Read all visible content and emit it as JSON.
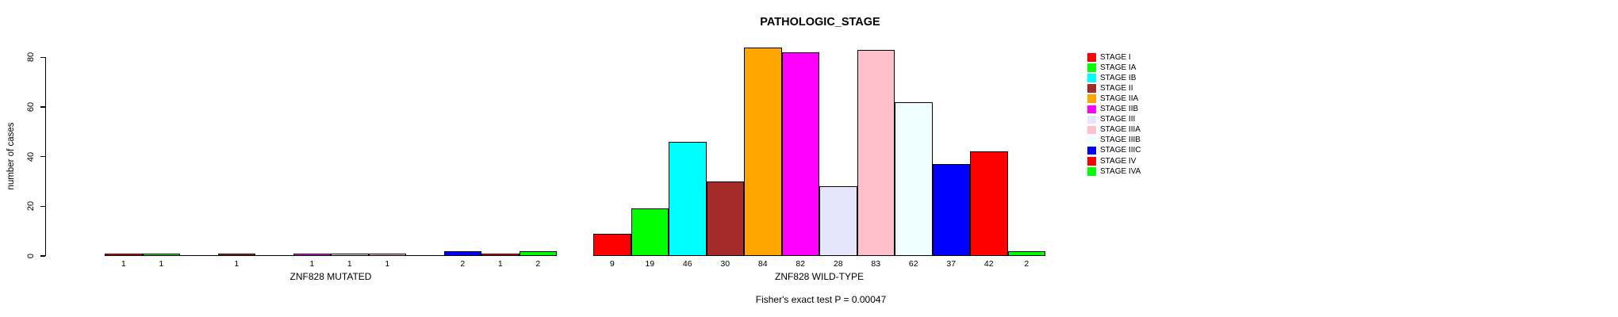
{
  "title": "PATHOLOGIC_STAGE",
  "ylabel": "number of cases",
  "caption": "Fisher's exact test P = 0.00047",
  "panel_titles": {
    "mutated": "ZNF828 MUTATED",
    "wildtype": "ZNF828 WILD-TYPE"
  },
  "chart_data": {
    "type": "bar",
    "title": "PATHOLOGIC_STAGE",
    "ylabel": "number of cases",
    "xlabel_left": "ZNF828 MUTATED",
    "xlabel_right": "ZNF828 WILD-TYPE",
    "ylim": [
      0,
      80
    ],
    "yticks": [
      0,
      20,
      40,
      60,
      80
    ],
    "grid": false,
    "legend_position": "right",
    "annotation": "Fisher's exact test P = 0.00047",
    "bar_labels_show_zero": false,
    "categories": [
      "STAGE I",
      "STAGE IA",
      "STAGE IB",
      "STAGE II",
      "STAGE IIA",
      "STAGE IIB",
      "STAGE III",
      "STAGE IIIA",
      "STAGE IIIB",
      "STAGE IIIC",
      "STAGE IV",
      "STAGE IVA"
    ],
    "colors": [
      "#FF0000",
      "#00FF00",
      "#00FFFF",
      "#A52A2A",
      "#FFA500",
      "#FF00FF",
      "#E6E6FA",
      "#FFC0CB",
      "#F0FFFF",
      "#0000FF",
      "#FF0000",
      "#00FF00"
    ],
    "series": [
      {
        "name": "ZNF828 MUTATED",
        "values": [
          1,
          1,
          0,
          1,
          0,
          1,
          1,
          1,
          0,
          2,
          1,
          2
        ]
      },
      {
        "name": "ZNF828 WILD-TYPE",
        "values": [
          9,
          19,
          46,
          30,
          84,
          82,
          28,
          83,
          62,
          37,
          42,
          2
        ]
      }
    ]
  },
  "legend": {
    "items": [
      {
        "label": "STAGE I",
        "color": "#FF0000"
      },
      {
        "label": "STAGE IA",
        "color": "#00FF00"
      },
      {
        "label": "STAGE IB",
        "color": "#00FFFF"
      },
      {
        "label": "STAGE II",
        "color": "#A52A2A"
      },
      {
        "label": "STAGE IIA",
        "color": "#FFA500"
      },
      {
        "label": "STAGE IIB",
        "color": "#FF00FF"
      },
      {
        "label": "STAGE III",
        "color": "#E6E6FA"
      },
      {
        "label": "STAGE IIIA",
        "color": "#FFC0CB"
      },
      {
        "label": "STAGE IIIB",
        "color": "#F0FFFF"
      },
      {
        "label": "STAGE IIIC",
        "color": "#0000FF"
      },
      {
        "label": "STAGE IV",
        "color": "#FF0000"
      },
      {
        "label": "STAGE IVA",
        "color": "#00FF00"
      }
    ]
  }
}
